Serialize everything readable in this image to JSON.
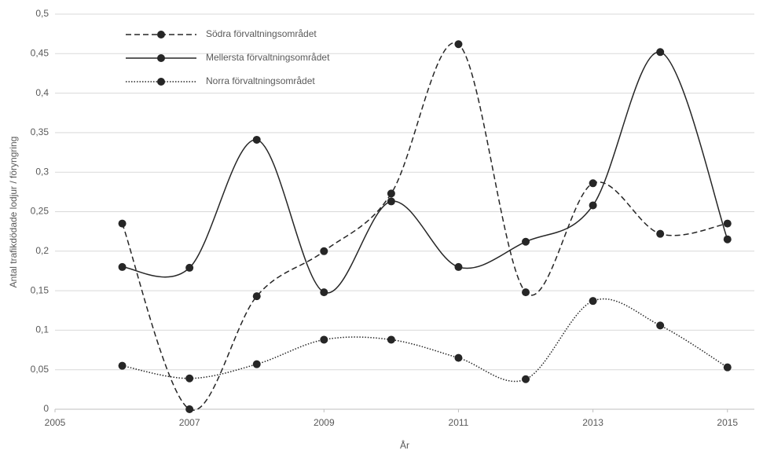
{
  "chart_data": {
    "type": "line",
    "ylabel": "Antal trafikdödade lodjur / föryngring",
    "xlabel": "År",
    "x": [
      2006,
      2007,
      2008,
      2009,
      2010,
      2011,
      2012,
      2013,
      2014,
      2015
    ],
    "series": [
      {
        "name": "Södra förvaltningsområdet",
        "color": "#262626",
        "linestyle": "dashed",
        "values": [
          0.235,
          0.0,
          0.143,
          0.2,
          0.273,
          0.462,
          0.148,
          0.286,
          0.222,
          0.235
        ]
      },
      {
        "name": "Mellersta förvaltningsområdet",
        "color": "#262626",
        "linestyle": "solid",
        "values": [
          0.18,
          0.179,
          0.341,
          0.148,
          0.263,
          0.18,
          0.212,
          0.258,
          0.452,
          0.215
        ]
      },
      {
        "name": "Norra förvaltningsområdet",
        "color": "#262626",
        "linestyle": "dotted",
        "values": [
          0.055,
          0.039,
          0.057,
          0.088,
          0.088,
          0.065,
          0.038,
          0.137,
          0.106,
          0.053
        ]
      }
    ],
    "xlim": [
      2005,
      2015.4
    ],
    "xticks": [
      2005,
      2007,
      2009,
      2011,
      2013,
      2015
    ],
    "ylim": [
      0,
      0.5
    ],
    "yticks": [
      0,
      {
        "value": 0.05,
        "label": "0,05"
      },
      {
        "value": 0.1,
        "label": "0,1"
      },
      {
        "value": 0.15,
        "label": "0,15"
      },
      {
        "value": 0.2,
        "label": "0,2"
      },
      {
        "value": 0.25,
        "label": "0,25"
      },
      {
        "value": 0.3,
        "label": "0,3"
      },
      {
        "value": 0.35,
        "label": "0,35"
      },
      {
        "value": 0.4,
        "label": "0,4"
      },
      {
        "value": 0.45,
        "label": "0,45"
      },
      {
        "value": 0.5,
        "label": "0,5"
      }
    ],
    "grid": true,
    "legend": "top-left",
    "smooth": true
  }
}
